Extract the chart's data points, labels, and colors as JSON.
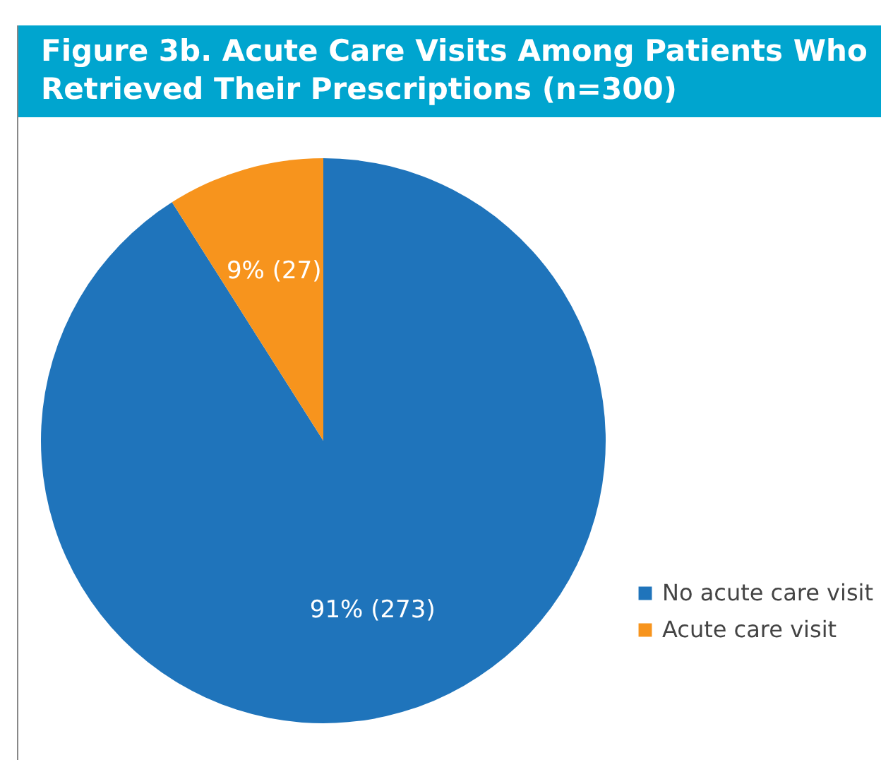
{
  "chart_data": {
    "type": "pie",
    "title": "Figure 3b. Acute Care Visits Among Patients Who Retrieved Their Prescriptions (n=300)",
    "categories": [
      "No acute care visit",
      "Acute care visit"
    ],
    "values": [
      273,
      27
    ],
    "colors": [
      "#1f74bb",
      "#f7941d"
    ],
    "value_labels": [
      "91% (273)",
      "9% (27)"
    ],
    "legend": "right"
  }
}
